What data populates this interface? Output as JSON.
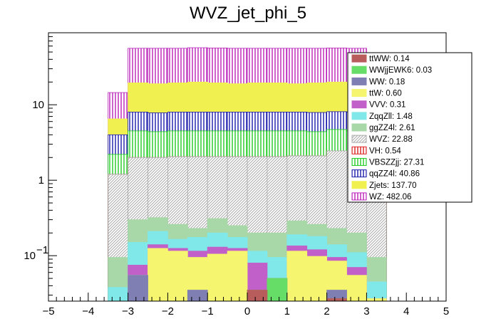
{
  "chart_data": {
    "type": "stacked-histogram",
    "title": "WVZ_jet_phi_5",
    "xlabel": "",
    "ylabel": "",
    "xlim": [
      -5,
      5
    ],
    "ylim": [
      0.025,
      90
    ],
    "yscale": "log",
    "x_tick_labels": [
      "−5",
      "−4",
      "−3",
      "−2",
      "−1",
      "0",
      "1",
      "2",
      "3",
      "4",
      "5"
    ],
    "y_tick_labels": [
      {
        "value": 0.1,
        "base": "10",
        "exp": "−1"
      },
      {
        "value": 1,
        "base": "1",
        "exp": ""
      },
      {
        "value": 10,
        "base": "10",
        "exp": ""
      }
    ],
    "bin_edges": [
      -3.5,
      -3,
      -2.5,
      -2,
      -1.5,
      -1,
      -0.5,
      0,
      0.5,
      1,
      1.5,
      2,
      2.5,
      3,
      3.5
    ],
    "stack_order": [
      "ttWW",
      "WWjjEWK6",
      "WW",
      "ttW",
      "VVV",
      "ZqqZll",
      "ggZZ4l",
      "WVZ",
      "VH",
      "VBSZZjj",
      "qqZZ4l",
      "Zjets",
      "WZ"
    ],
    "cumulative_tops": {
      "ttWW": [
        0,
        0,
        0,
        0,
        0,
        0,
        0,
        0.035,
        0,
        0,
        0,
        0.027,
        0,
        0
      ],
      "WWjjEWK6": [
        0,
        0,
        0,
        0,
        0,
        0,
        0,
        0.035,
        0.05,
        0,
        0,
        0.027,
        0,
        0
      ],
      "WW": [
        0,
        0.055,
        0,
        0,
        0.035,
        0,
        0,
        0.035,
        0.05,
        0,
        0,
        0.035,
        0,
        0
      ],
      "ttW": [
        0,
        0.055,
        0.125,
        0.115,
        0.095,
        0.105,
        0.115,
        0.035,
        0.05,
        0.115,
        0.098,
        0.085,
        0.055,
        0.027
      ],
      "VVV": [
        0,
        0.075,
        0.14,
        0.125,
        0.115,
        0.13,
        0.125,
        0.08,
        0.05,
        0.135,
        0.12,
        0.095,
        0.07,
        0.027
      ],
      "ZqqZll": [
        0.038,
        0.15,
        0.21,
        0.165,
        0.175,
        0.2,
        0.175,
        0.115,
        0.095,
        0.19,
        0.18,
        0.14,
        0.11,
        0.045
      ],
      "ggZZ4l": [
        0.095,
        0.3,
        0.32,
        0.26,
        0.23,
        0.31,
        0.25,
        0.2,
        0.2,
        0.29,
        0.26,
        0.23,
        0.2,
        0.095
      ],
      "WVZ": [
        1.2,
        2.0,
        2.0,
        2.05,
        2.05,
        2.05,
        2.05,
        2.05,
        2.05,
        2.1,
        2.1,
        2.45,
        2.2,
        1.2
      ],
      "VH": [
        1.2,
        2.0,
        2.0,
        2.05,
        2.05,
        2.05,
        2.05,
        2.05,
        2.05,
        2.1,
        2.1,
        2.45,
        2.2,
        1.2
      ],
      "VBSZZjj": [
        2.2,
        4.5,
        4.4,
        4.5,
        4.5,
        4.5,
        4.5,
        4.5,
        4.5,
        4.5,
        4.4,
        4.7,
        4.5,
        2.2
      ],
      "qqZZ4l": [
        4.0,
        8.0,
        7.8,
        8.0,
        8.0,
        8.0,
        8.0,
        8.0,
        8.0,
        8.0,
        7.9,
        8.1,
        8.0,
        4.0
      ],
      "Zjets": [
        6.5,
        19.5,
        19.0,
        19.5,
        20.0,
        19.5,
        19.0,
        19.5,
        19.5,
        19.0,
        19.5,
        20.0,
        19.5,
        6.5
      ],
      "WZ": [
        14.5,
        56.0,
        56.0,
        56.0,
        57.0,
        56.5,
        56.0,
        56.0,
        56.0,
        56.0,
        56.0,
        56.5,
        56.0,
        14.5
      ]
    },
    "legend": {
      "position": "top-right",
      "entries": [
        {
          "key": "ttWW",
          "label": "ttWW: 0.14",
          "fill": "#b85c5c",
          "pattern": "solid"
        },
        {
          "key": "WWjjEWK6",
          "label": "WWjjEWK6: 0.03",
          "fill": "#66dd66",
          "pattern": "solid"
        },
        {
          "key": "WW",
          "label": "WW: 0.18",
          "fill": "#7f7fb4",
          "pattern": "solid"
        },
        {
          "key": "ttW",
          "label": "ttW: 0.60",
          "fill": "#f5f570",
          "pattern": "solid"
        },
        {
          "key": "VVV",
          "label": "VVV: 0.31",
          "fill": "#c060c8",
          "pattern": "solid"
        },
        {
          "key": "ZqqZll",
          "label": "ZqqZll: 1.48",
          "fill": "#80e8e8",
          "pattern": "solid"
        },
        {
          "key": "ggZZ4l",
          "label": "ggZZ4l: 2.61",
          "fill": "#a8d8a8",
          "pattern": "solid"
        },
        {
          "key": "WVZ",
          "label": "WVZ: 22.88",
          "fill": "#aaaaaa",
          "pattern": "diag"
        },
        {
          "key": "VH",
          "label": "VH: 0.54",
          "fill": "#dd2222",
          "pattern": "vert"
        },
        {
          "key": "VBSZZjj",
          "label": "VBSZZjj: 27.31",
          "fill": "#22cc22",
          "pattern": "vert"
        },
        {
          "key": "qqZZ4l",
          "label": "qqZZ4l: 40.86",
          "fill": "#1a1aaa",
          "pattern": "vert"
        },
        {
          "key": "Zjets",
          "label": "Zjets: 137.70",
          "fill": "#f0f050",
          "pattern": "solid"
        },
        {
          "key": "WZ",
          "label": "WZ: 482.06",
          "fill": "#bb22bb",
          "pattern": "vert"
        }
      ]
    }
  }
}
